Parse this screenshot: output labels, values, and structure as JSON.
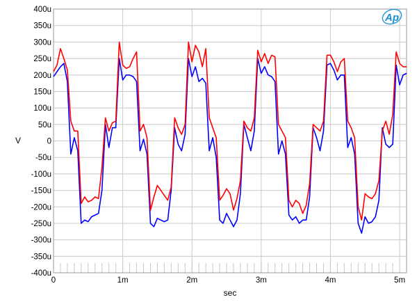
{
  "chart_data": {
    "type": "line",
    "title": "",
    "xlabel": "sec",
    "ylabel": "V",
    "xlim": [
      0,
      0.0051
    ],
    "ylim": [
      -0.0004,
      0.0004
    ],
    "grid": true,
    "x_ticks": [
      {
        "value": 0,
        "label": "0"
      },
      {
        "value": 0.001,
        "label": "1m"
      },
      {
        "value": 0.002,
        "label": "2m"
      },
      {
        "value": 0.003,
        "label": "3m"
      },
      {
        "value": 0.004,
        "label": "4m"
      },
      {
        "value": 0.005,
        "label": "5m"
      }
    ],
    "y_ticks": [
      {
        "value": 0.0004,
        "label": "400u"
      },
      {
        "value": 0.00035,
        "label": "350u"
      },
      {
        "value": 0.0003,
        "label": "300u"
      },
      {
        "value": 0.00025,
        "label": "250u"
      },
      {
        "value": 0.0002,
        "label": "200u"
      },
      {
        "value": 0.00015,
        "label": "150u"
      },
      {
        "value": 0.0001,
        "label": "100u"
      },
      {
        "value": 5e-05,
        "label": "50u"
      },
      {
        "value": 0,
        "label": "0"
      },
      {
        "value": -5e-05,
        "label": "-50u"
      },
      {
        "value": -0.0001,
        "label": "-100u"
      },
      {
        "value": -0.00015,
        "label": "-150u"
      },
      {
        "value": -0.0002,
        "label": "-200u"
      },
      {
        "value": -0.00025,
        "label": "-250u"
      },
      {
        "value": -0.0003,
        "label": "-300u"
      },
      {
        "value": -0.00035,
        "label": "-350u"
      },
      {
        "value": -0.0004,
        "label": "-400u"
      }
    ],
    "series": [
      {
        "color": "#0000ff",
        "x": [
          0,
          5e-05,
          0.0001,
          0.00015,
          0.0002,
          0.00025,
          0.0003,
          0.00035,
          0.0004,
          0.00045,
          0.0005,
          0.00055,
          0.0006,
          0.00065,
          0.0007,
          0.00075,
          0.0008,
          0.00085,
          0.0009,
          0.00095,
          0.001,
          0.00105,
          0.0011,
          0.00115,
          0.0012,
          0.00125,
          0.0013,
          0.00135,
          0.0014,
          0.00145,
          0.0015,
          0.00155,
          0.0016,
          0.00165,
          0.0017,
          0.00175,
          0.0018,
          0.00185,
          0.0019,
          0.00195,
          0.002,
          0.00205,
          0.0021,
          0.00215,
          0.0022,
          0.00225,
          0.0023,
          0.00235,
          0.0024,
          0.00245,
          0.0025,
          0.00255,
          0.0026,
          0.00265,
          0.0027,
          0.00275,
          0.0028,
          0.00285,
          0.0029,
          0.00295,
          0.003,
          0.00305,
          0.0031,
          0.00315,
          0.0032,
          0.00325,
          0.0033,
          0.00335,
          0.0034,
          0.00345,
          0.0035,
          0.00355,
          0.0036,
          0.00365,
          0.0037,
          0.00375,
          0.0038,
          0.00385,
          0.0039,
          0.00395,
          0.004,
          0.00405,
          0.0041,
          0.00415,
          0.0042,
          0.00425,
          0.0043,
          0.00435,
          0.0044,
          0.00445,
          0.0045,
          0.00455,
          0.0046,
          0.00465,
          0.0047,
          0.00475,
          0.0048,
          0.00485,
          0.0049,
          0.00495,
          0.005,
          0.00505,
          0.0051
        ],
        "y": [
          0.000195,
          0.00021,
          0.000225,
          0.000235,
          0.00018,
          -4e-05,
          1e-05,
          -3e-05,
          -0.00025,
          -0.00024,
          -0.000245,
          -0.00023,
          -0.000225,
          -0.00022,
          -0.00015,
          5e-05,
          -2e-05,
          4e-05,
          4e-05,
          0.00025,
          0.000185,
          0.0002,
          0.0002,
          0.000195,
          0.00018,
          -3e-05,
          5e-06,
          -4e-05,
          -0.00025,
          -0.00026,
          -0.000235,
          -0.00024,
          -0.000245,
          -0.00024,
          -0.00015,
          4e-05,
          -1e-05,
          -3e-05,
          2e-05,
          0.00025,
          0.000195,
          0.000225,
          0.00018,
          0.00019,
          0.000175,
          -3e-05,
          1e-05,
          -5e-05,
          -0.00024,
          -0.00025,
          -0.00022,
          -0.00024,
          -0.00026,
          -0.00024,
          -0.00016,
          5e-05,
          1e-05,
          -3e-05,
          3e-05,
          0.00025,
          0.000205,
          0.000225,
          0.0002,
          0.000195,
          0.00018,
          -4e-05,
          0.0,
          -4e-05,
          -0.000225,
          -0.00024,
          -0.00023,
          -0.00025,
          -0.00024,
          -0.00024,
          -0.00017,
          4e-05,
          1e-05,
          -3e-05,
          3e-05,
          0.00023,
          0.000235,
          0.000215,
          0.000185,
          0.0002,
          0.0002,
          -2e-05,
          1e-05,
          -4e-05,
          -0.00025,
          -0.00028,
          -0.00023,
          -0.00025,
          -0.000245,
          -0.00023,
          -0.00018,
          4e-05,
          -1e-05,
          -2e-05,
          -1e-05,
          0.00023,
          0.00017,
          0.0002,
          0.000205
        ]
      },
      {
        "color": "#ff0000",
        "x": [
          0,
          5e-05,
          0.0001,
          0.00015,
          0.0002,
          0.00025,
          0.0003,
          0.00035,
          0.0004,
          0.00045,
          0.0005,
          0.00055,
          0.0006,
          0.00065,
          0.0007,
          0.00075,
          0.0008,
          0.00085,
          0.0009,
          0.00095,
          0.001,
          0.00105,
          0.0011,
          0.00115,
          0.0012,
          0.00125,
          0.0013,
          0.00135,
          0.0014,
          0.00145,
          0.0015,
          0.00155,
          0.0016,
          0.00165,
          0.0017,
          0.00175,
          0.0018,
          0.00185,
          0.0019,
          0.00195,
          0.002,
          0.00205,
          0.0021,
          0.00215,
          0.0022,
          0.00225,
          0.0023,
          0.00235,
          0.0024,
          0.00245,
          0.0025,
          0.00255,
          0.0026,
          0.00265,
          0.0027,
          0.00275,
          0.0028,
          0.00285,
          0.0029,
          0.00295,
          0.003,
          0.00305,
          0.0031,
          0.00315,
          0.0032,
          0.00325,
          0.0033,
          0.00335,
          0.0034,
          0.00345,
          0.0035,
          0.00355,
          0.0036,
          0.00365,
          0.0037,
          0.00375,
          0.0038,
          0.00385,
          0.0039,
          0.00395,
          0.004,
          0.00405,
          0.0041,
          0.00415,
          0.0042,
          0.00425,
          0.0043,
          0.00435,
          0.0044,
          0.00445,
          0.0045,
          0.00455,
          0.0046,
          0.00465,
          0.0047,
          0.00475,
          0.0048,
          0.00485,
          0.0049,
          0.00495,
          0.005,
          0.00505,
          0.0051
        ],
        "y": [
          0.00021,
          0.00023,
          0.00028,
          0.00025,
          0.000215,
          6e-05,
          3e-05,
          3e-05,
          -0.00019,
          -0.00017,
          -0.000185,
          -0.00018,
          -0.00017,
          -0.000175,
          -8e-05,
          7e-05,
          3e-05,
          5.5e-05,
          6e-05,
          0.0003,
          0.00023,
          0.00022,
          0.000225,
          0.00025,
          0.00027,
          3e-05,
          5e-05,
          1e-05,
          -0.00021,
          -0.00017,
          -0.000135,
          -0.00015,
          -0.000165,
          -0.00018,
          -0.00014,
          7e-05,
          4e-05,
          2e-05,
          5e-05,
          0.0003,
          0.00024,
          0.00029,
          0.00027,
          0.000225,
          0.00028,
          7e-05,
          4e-05,
          1e-05,
          -0.00018,
          -0.000165,
          -0.000145,
          -0.00016,
          -0.00021,
          -0.000175,
          -0.00012,
          6e-05,
          4e-05,
          3e-05,
          7e-05,
          0.000275,
          0.00024,
          0.000265,
          0.000235,
          0.00026,
          0.000255,
          5e-05,
          3e-05,
          1e-05,
          -0.00018,
          -0.0002,
          -0.00018,
          -0.00019,
          -0.00022,
          -0.000195,
          -0.00013,
          5e-05,
          4e-05,
          3e-05,
          6e-05,
          0.00026,
          0.00026,
          0.00024,
          0.00021,
          0.00024,
          0.00025,
          6e-05,
          4e-05,
          1e-05,
          -0.0002,
          -0.00024,
          -0.00016,
          -0.00017,
          -0.000175,
          -0.00016,
          -0.00012,
          3e-05,
          6e-05,
          2e-05,
          8e-05,
          0.00027,
          0.000235,
          0.000225,
          0.000225
        ]
      }
    ]
  }
}
